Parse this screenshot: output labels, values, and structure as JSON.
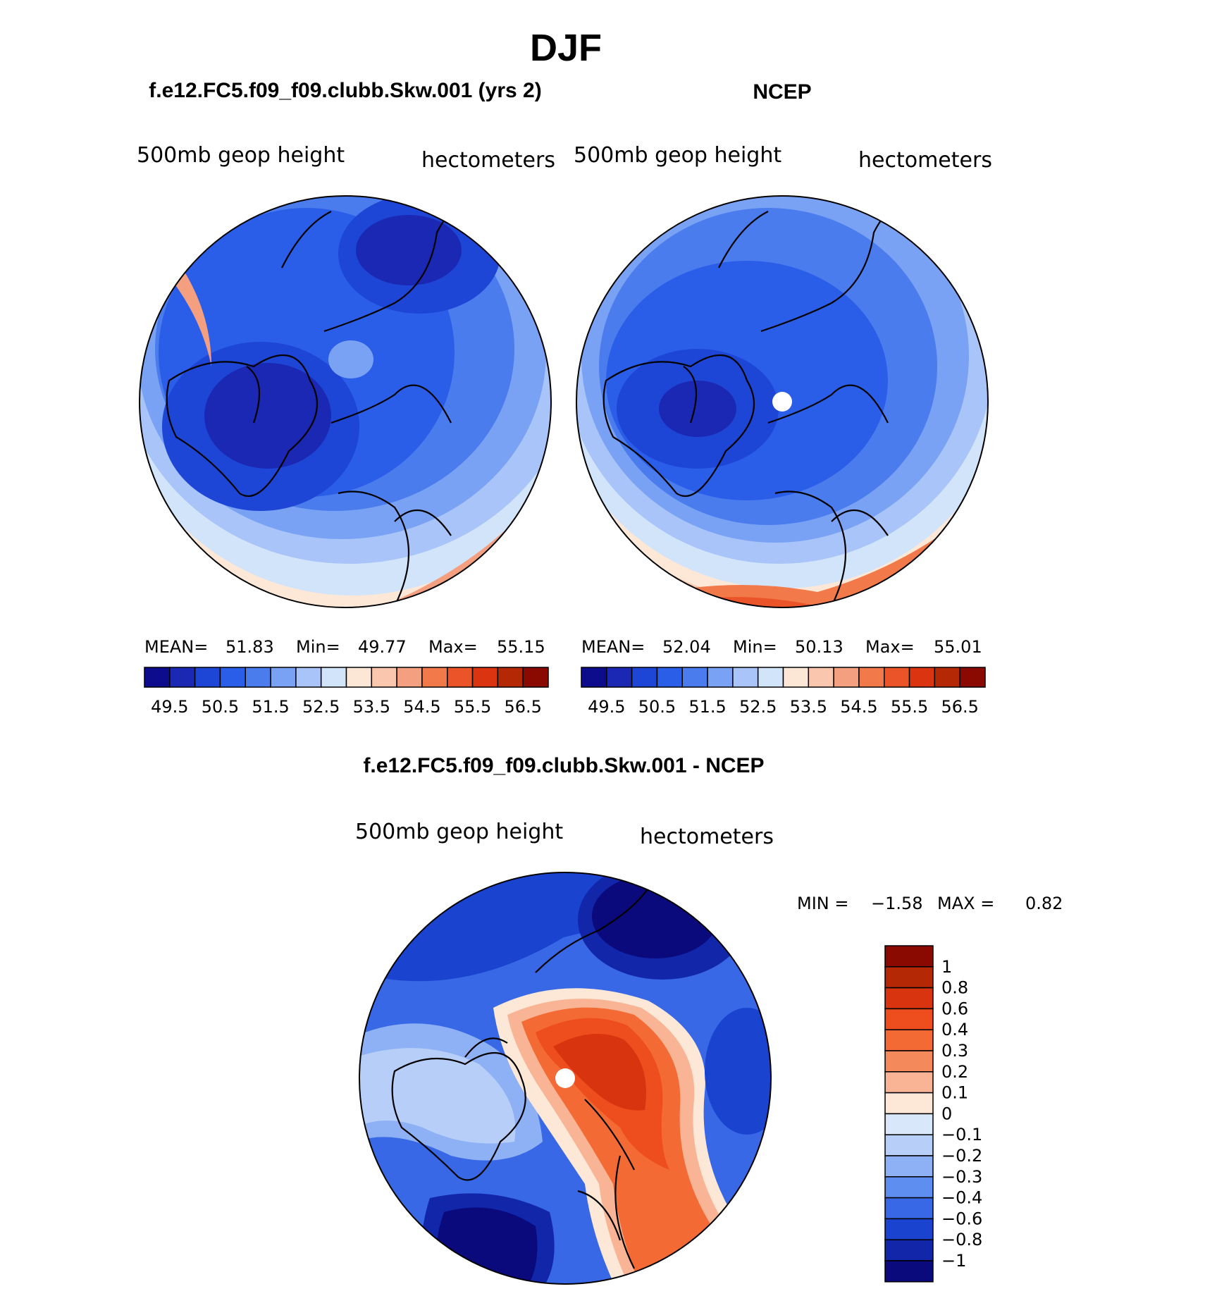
{
  "title": "DJF",
  "chart_data": [
    {
      "type": "contour-map",
      "title": "f.e12.FC5.f09_f09.clubb.Skw.001 (yrs 2)",
      "left_label": "500mb geop height",
      "right_label": "hectometers",
      "stats": {
        "mean_label": "MEAN=",
        "mean": "51.83",
        "min_label": "Min=",
        "min": "49.77",
        "max_label": "Max=",
        "max": "55.15"
      }
    },
    {
      "type": "contour-map",
      "title": "NCEP",
      "left_label": "500mb geop height",
      "right_label": "hectometers",
      "stats": {
        "mean_label": "MEAN=",
        "mean": "52.04",
        "min_label": "Min=",
        "min": "50.13",
        "max_label": "Max=",
        "max": "55.01"
      }
    },
    {
      "type": "contour-map",
      "title": "f.e12.FC5.f09_f09.clubb.Skw.001 - NCEP",
      "left_label": "500mb geop height",
      "right_label": "hectometers",
      "stats": {
        "min_label": "MIN =",
        "min": "−1.58",
        "max_label": "MAX =",
        "max": "0.82"
      }
    }
  ],
  "colorbar_main": {
    "labels": [
      "49.5",
      "50.5",
      "51.5",
      "52.5",
      "53.5",
      "54.5",
      "55.5",
      "56.5"
    ],
    "colors": [
      "#0c0c8c",
      "#1a28b4",
      "#1e46d6",
      "#2a5ee8",
      "#4a7cee",
      "#7aa2f4",
      "#a8c4f8",
      "#d2e4fa",
      "#fce6d6",
      "#fac6ae",
      "#f4a080",
      "#f27a4a",
      "#ea5428",
      "#da3410",
      "#b42806",
      "#8a0a02"
    ]
  },
  "colorbar_diff": {
    "labels": [
      "1",
      "0.8",
      "0.6",
      "0.4",
      "0.3",
      "0.2",
      "0.1",
      "0",
      "−0.1",
      "−0.2",
      "−0.3",
      "−0.4",
      "−0.6",
      "−0.8",
      "−1"
    ],
    "colors": [
      "#8a0a02",
      "#b42806",
      "#d83410",
      "#ee4e1e",
      "#f46a34",
      "#f48a5c",
      "#f8b494",
      "#fde8d8",
      "#d8e8fa",
      "#b6cef8",
      "#8eb0f4",
      "#5e8ef0",
      "#3868e6",
      "#1a44d0",
      "#1226aa",
      "#0a0a7c"
    ]
  }
}
